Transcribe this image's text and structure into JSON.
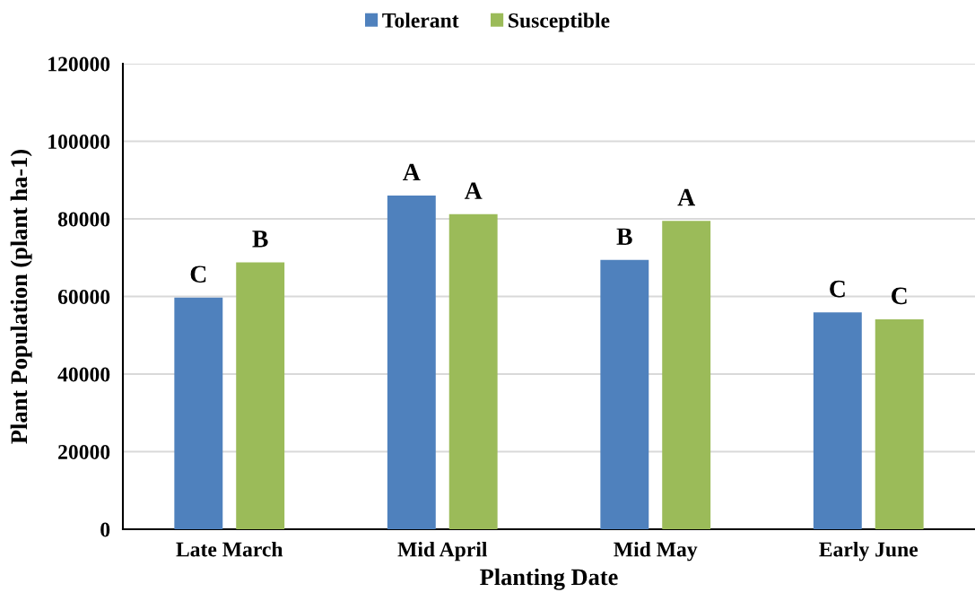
{
  "chart_data": {
    "type": "bar",
    "xlabel": "Planting Date",
    "ylabel": "Plant Population (plant ha-1)",
    "categories": [
      "Late March",
      "Mid April",
      "Mid May",
      "Early June"
    ],
    "series": [
      {
        "name": "Tolerant",
        "color": "#4f81bd",
        "values": [
          59700,
          86000,
          69400,
          55900
        ],
        "value_labels": [
          "C",
          "A",
          "B",
          "C"
        ]
      },
      {
        "name": "Susceptible",
        "color": "#9bbb59",
        "values": [
          68800,
          81200,
          79500,
          54100
        ],
        "value_labels": [
          "B",
          "A",
          "A",
          "C"
        ]
      }
    ],
    "ylim": [
      0,
      120000
    ],
    "yticks": [
      0,
      20000,
      40000,
      60000,
      80000,
      100000,
      120000
    ],
    "grid": "y",
    "legend": "top"
  }
}
